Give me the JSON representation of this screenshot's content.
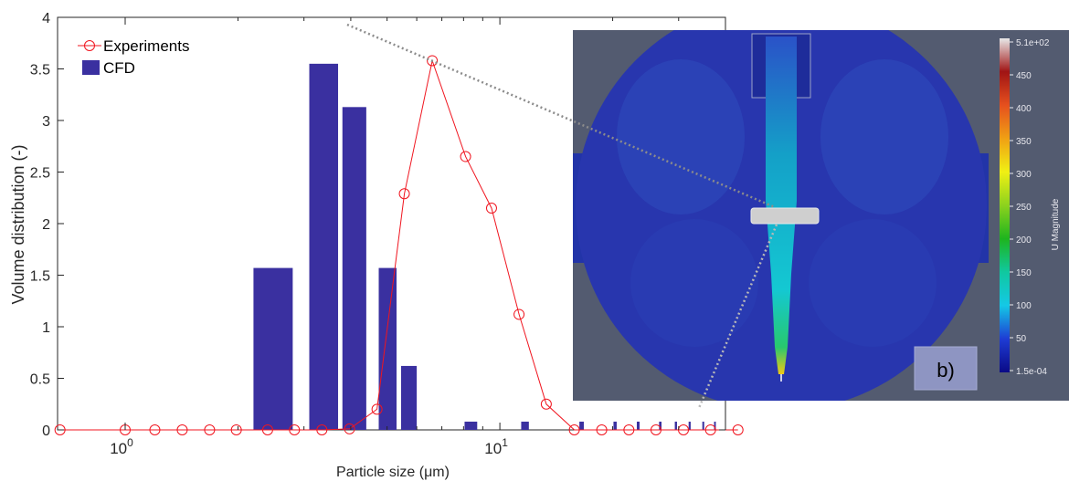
{
  "chart_data": {
    "type": "bar+line",
    "xscale": "log",
    "xlim": [
      0.66,
      40
    ],
    "ylim": [
      0,
      4
    ],
    "xlabel": "Particle size (μm)",
    "ylabel": "Volume distribution (-)",
    "xticks": [
      {
        "value": 1,
        "label": "10^0"
      },
      {
        "value": 10,
        "label": "10^1"
      }
    ],
    "yticks": [
      0,
      0.5,
      1,
      1.5,
      2,
      2.5,
      3,
      3.5,
      4
    ],
    "grid": false,
    "legend_position": "top-left",
    "legend": [
      "Experiments",
      "CFD"
    ],
    "series": [
      {
        "name": "CFD",
        "type": "bar",
        "color": "#3a30a0",
        "bars": [
          {
            "x0": 2.2,
            "x1": 2.8,
            "value": 1.57
          },
          {
            "x0": 3.1,
            "x1": 3.7,
            "value": 3.55
          },
          {
            "x0": 3.8,
            "x1": 4.4,
            "value": 3.13
          },
          {
            "x0": 4.75,
            "x1": 5.3,
            "value": 1.57
          },
          {
            "x0": 5.45,
            "x1": 6.0,
            "value": 0.62
          },
          {
            "x0": 8.05,
            "x1": 8.7,
            "value": 0.08
          },
          {
            "x0": 11.4,
            "x1": 11.95,
            "value": 0.08
          },
          {
            "x0": 16.3,
            "x1": 16.75,
            "value": 0.08
          },
          {
            "x0": 20.1,
            "x1": 20.5,
            "value": 0.08
          },
          {
            "x0": 23.2,
            "x1": 23.6,
            "value": 0.08
          },
          {
            "x0": 26.6,
            "x1": 27.0,
            "value": 0.08
          },
          {
            "x0": 29.3,
            "x1": 29.7,
            "value": 0.08
          },
          {
            "x0": 31.9,
            "x1": 32.3,
            "value": 0.08
          },
          {
            "x0": 34.7,
            "x1": 35.1,
            "value": 0.08
          },
          {
            "x0": 37.3,
            "x1": 37.7,
            "value": 0.08
          }
        ]
      },
      {
        "name": "Experiments",
        "type": "line",
        "color": "#f0151f",
        "marker": "circle",
        "x": [
          0.67,
          1.0,
          1.2,
          1.42,
          1.68,
          1.98,
          2.4,
          2.83,
          3.35,
          3.97,
          4.7,
          5.56,
          6.6,
          8.1,
          9.5,
          11.25,
          13.3,
          15.8,
          18.7,
          22.1,
          26.1,
          30.9,
          36.5,
          43.2
        ],
        "y": [
          0,
          0,
          0,
          0,
          0,
          0,
          0,
          0,
          0,
          0.01,
          0.2,
          2.29,
          3.58,
          2.65,
          2.15,
          1.12,
          0.25,
          0,
          0,
          0,
          0,
          0,
          0,
          0
        ]
      }
    ]
  },
  "cfd_panel": {
    "panel_label": "b)",
    "colorbar": {
      "title": "U Magnitude",
      "labels": [
        "5.1e+02",
        "450",
        "400",
        "350",
        "300",
        "250",
        "200",
        "150",
        "100",
        "50",
        "1.5e-04"
      ]
    }
  }
}
